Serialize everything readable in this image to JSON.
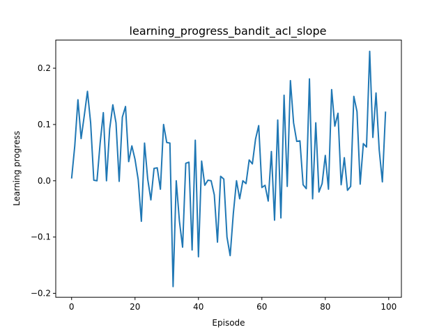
{
  "chart_data": {
    "type": "line",
    "title": "learning_progress_bandit_acl_slope",
    "xlabel": "Episode",
    "ylabel": "Learning progress",
    "xlim": [
      -5,
      104
    ],
    "ylim": [
      -0.207,
      0.25
    ],
    "xticks": [
      0,
      20,
      40,
      60,
      80,
      100
    ],
    "xtick_labels": [
      "0",
      "20",
      "40",
      "60",
      "80",
      "100"
    ],
    "yticks": [
      -0.2,
      -0.1,
      0.0,
      0.1,
      0.2
    ],
    "ytick_labels": [
      "−0.2",
      "−0.1",
      "0.0",
      "0.1",
      "0.2"
    ],
    "grid": false,
    "series": [
      {
        "color": "#1f77b4",
        "x": [
          0,
          1,
          2,
          3,
          4,
          5,
          6,
          7,
          8,
          9,
          10,
          11,
          12,
          13,
          14,
          15,
          16,
          17,
          18,
          19,
          20,
          21,
          22,
          23,
          24,
          25,
          26,
          27,
          28,
          29,
          30,
          31,
          32,
          33,
          34,
          35,
          36,
          37,
          38,
          39,
          40,
          41,
          42,
          43,
          44,
          45,
          46,
          47,
          48,
          49,
          50,
          51,
          52,
          53,
          54,
          55,
          56,
          57,
          58,
          59,
          60,
          61,
          62,
          63,
          64,
          65,
          66,
          67,
          68,
          69,
          70,
          71,
          72,
          73,
          74,
          75,
          76,
          77,
          78,
          79,
          80,
          81,
          82,
          83,
          84,
          85,
          86,
          87,
          88,
          89,
          90,
          91,
          92,
          93,
          94,
          95,
          96,
          97,
          98,
          99
        ],
        "y": [
          0.004,
          0.062,
          0.144,
          0.075,
          0.116,
          0.159,
          0.103,
          0.001,
          0.0,
          0.067,
          0.121,
          0.0,
          0.092,
          0.135,
          0.103,
          -0.001,
          0.113,
          0.132,
          0.034,
          0.062,
          0.038,
          0.002,
          -0.072,
          0.067,
          0.003,
          -0.034,
          0.022,
          0.023,
          -0.015,
          0.1,
          0.068,
          0.067,
          -0.188,
          0.0,
          -0.072,
          -0.118,
          0.031,
          0.033,
          -0.123,
          0.072,
          -0.135,
          0.035,
          -0.008,
          0.001,
          0.0,
          -0.025,
          -0.109,
          0.008,
          0.003,
          -0.1,
          -0.133,
          -0.058,
          0.0,
          -0.032,
          0.0,
          -0.005,
          0.037,
          0.03,
          0.074,
          0.098,
          -0.012,
          -0.008,
          -0.036,
          0.052,
          -0.07,
          0.108,
          -0.066,
          0.152,
          -0.01,
          0.178,
          0.103,
          0.07,
          0.071,
          -0.007,
          -0.014,
          0.181,
          -0.032,
          0.103,
          -0.02,
          -0.005,
          0.045,
          -0.015,
          0.162,
          0.097,
          0.12,
          -0.007,
          0.041,
          -0.017,
          -0.01,
          0.15,
          0.123,
          -0.006,
          0.066,
          0.06,
          0.23,
          0.077,
          0.156,
          0.055,
          -0.002,
          0.123
        ]
      }
    ]
  }
}
